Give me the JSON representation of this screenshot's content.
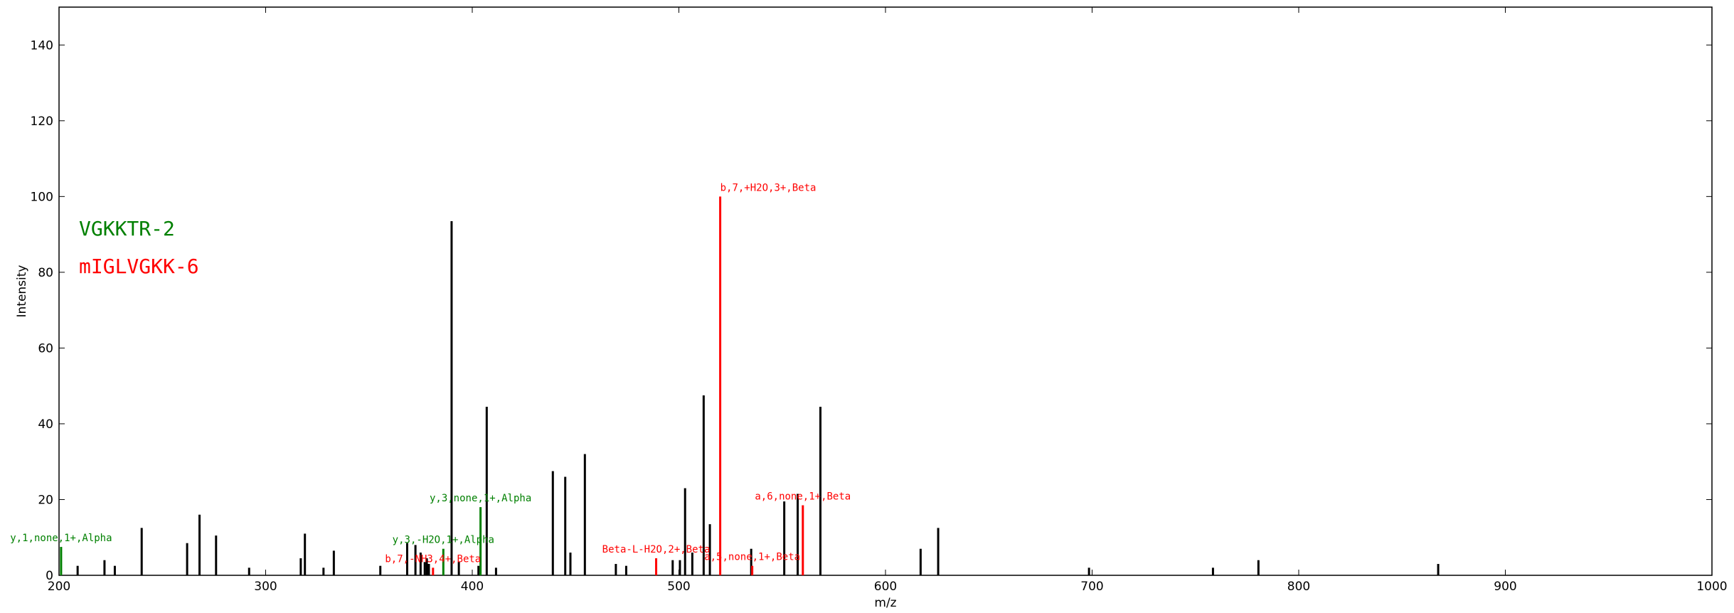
{
  "chart_data": {
    "type": "bar",
    "xlabel": "m/z",
    "ylabel": "Intensity",
    "xlim": [
      200,
      1000
    ],
    "ylim": [
      0,
      150
    ],
    "x_ticks": [
      200,
      300,
      400,
      500,
      600,
      700,
      800,
      900,
      1000
    ],
    "y_ticks": [
      0,
      20,
      40,
      60,
      80,
      100,
      120,
      140
    ],
    "grid": false,
    "colors": {
      "unmatched": "#000000",
      "alpha": "#008000",
      "beta": "#ff0000"
    },
    "peptides": [
      {
        "text": "VGKKTR-2",
        "color": "#008000"
      },
      {
        "text": "mIGLVGKK-6",
        "color": "#ff0000"
      }
    ],
    "peaks": [
      {
        "mz": 201.0,
        "intensity": 7.5,
        "series": "alpha",
        "label": "y,1,none,1+,Alpha"
      },
      {
        "mz": 209.0,
        "intensity": 2.5,
        "series": "unmatched"
      },
      {
        "mz": 222.0,
        "intensity": 4.0,
        "series": "unmatched"
      },
      {
        "mz": 227.0,
        "intensity": 2.5,
        "series": "unmatched"
      },
      {
        "mz": 240.0,
        "intensity": 12.5,
        "series": "unmatched"
      },
      {
        "mz": 262.0,
        "intensity": 8.5,
        "series": "unmatched"
      },
      {
        "mz": 268.0,
        "intensity": 16.0,
        "series": "unmatched"
      },
      {
        "mz": 276.0,
        "intensity": 10.5,
        "series": "unmatched"
      },
      {
        "mz": 292.0,
        "intensity": 2.0,
        "series": "unmatched"
      },
      {
        "mz": 317.0,
        "intensity": 4.5,
        "series": "unmatched"
      },
      {
        "mz": 319.0,
        "intensity": 11.0,
        "series": "unmatched"
      },
      {
        "mz": 328.0,
        "intensity": 2.0,
        "series": "unmatched"
      },
      {
        "mz": 333.0,
        "intensity": 6.5,
        "series": "unmatched"
      },
      {
        "mz": 355.5,
        "intensity": 2.5,
        "series": "unmatched"
      },
      {
        "mz": 368.5,
        "intensity": 8.5,
        "series": "unmatched"
      },
      {
        "mz": 372.5,
        "intensity": 8.0,
        "series": "unmatched"
      },
      {
        "mz": 375.0,
        "intensity": 6.0,
        "series": "unmatched"
      },
      {
        "mz": 377.0,
        "intensity": 3.5,
        "series": "unmatched"
      },
      {
        "mz": 378.0,
        "intensity": 4.5,
        "series": "unmatched"
      },
      {
        "mz": 379.0,
        "intensity": 3.0,
        "series": "unmatched"
      },
      {
        "mz": 381.0,
        "intensity": 2.0,
        "series": "beta",
        "label": "b,7,-NH3,4+,Beta"
      },
      {
        "mz": 386.0,
        "intensity": 7.0,
        "series": "alpha",
        "label": "y,3,-H2O,1+,Alpha"
      },
      {
        "mz": 390.0,
        "intensity": 93.5,
        "series": "unmatched"
      },
      {
        "mz": 393.5,
        "intensity": 3.5,
        "series": "unmatched"
      },
      {
        "mz": 403.0,
        "intensity": 2.5,
        "series": "unmatched"
      },
      {
        "mz": 404.0,
        "intensity": 18.0,
        "series": "alpha",
        "label": "y,3,none,1+,Alpha"
      },
      {
        "mz": 407.0,
        "intensity": 44.5,
        "series": "unmatched"
      },
      {
        "mz": 411.5,
        "intensity": 2.0,
        "series": "unmatched"
      },
      {
        "mz": 439.0,
        "intensity": 27.5,
        "series": "unmatched"
      },
      {
        "mz": 445.0,
        "intensity": 26.0,
        "series": "unmatched"
      },
      {
        "mz": 447.5,
        "intensity": 6.0,
        "series": "unmatched"
      },
      {
        "mz": 454.5,
        "intensity": 32.0,
        "series": "unmatched"
      },
      {
        "mz": 469.5,
        "intensity": 3.0,
        "series": "unmatched"
      },
      {
        "mz": 474.5,
        "intensity": 2.5,
        "series": "unmatched"
      },
      {
        "mz": 489.0,
        "intensity": 4.5,
        "series": "beta",
        "label": "Beta-L-H2O,2+,Beta"
      },
      {
        "mz": 497.0,
        "intensity": 4.0,
        "series": "unmatched"
      },
      {
        "mz": 500.5,
        "intensity": 4.0,
        "series": "unmatched"
      },
      {
        "mz": 503.0,
        "intensity": 23.0,
        "series": "unmatched"
      },
      {
        "mz": 506.5,
        "intensity": 6.0,
        "series": "unmatched"
      },
      {
        "mz": 512.0,
        "intensity": 47.5,
        "series": "unmatched"
      },
      {
        "mz": 515.0,
        "intensity": 13.5,
        "series": "unmatched"
      },
      {
        "mz": 520.0,
        "intensity": 100.0,
        "series": "beta",
        "label": "b,7,+H2O,3+,Beta"
      },
      {
        "mz": 535.0,
        "intensity": 7.0,
        "series": "unmatched"
      },
      {
        "mz": 535.5,
        "intensity": 2.5,
        "series": "beta",
        "label": "a,5,none,1+,Beta"
      },
      {
        "mz": 551.0,
        "intensity": 19.5,
        "series": "unmatched"
      },
      {
        "mz": 557.5,
        "intensity": 21.5,
        "series": "unmatched"
      },
      {
        "mz": 560.0,
        "intensity": 18.5,
        "series": "beta",
        "label": "a,6,none,1+,Beta"
      },
      {
        "mz": 568.5,
        "intensity": 44.5,
        "series": "unmatched"
      },
      {
        "mz": 617.0,
        "intensity": 7.0,
        "series": "unmatched"
      },
      {
        "mz": 625.5,
        "intensity": 12.5,
        "series": "unmatched"
      },
      {
        "mz": 698.5,
        "intensity": 2.0,
        "series": "unmatched"
      },
      {
        "mz": 758.5,
        "intensity": 2.0,
        "series": "unmatched"
      },
      {
        "mz": 780.5,
        "intensity": 4.0,
        "series": "unmatched"
      },
      {
        "mz": 867.5,
        "intensity": 3.0,
        "series": "unmatched"
      }
    ]
  }
}
